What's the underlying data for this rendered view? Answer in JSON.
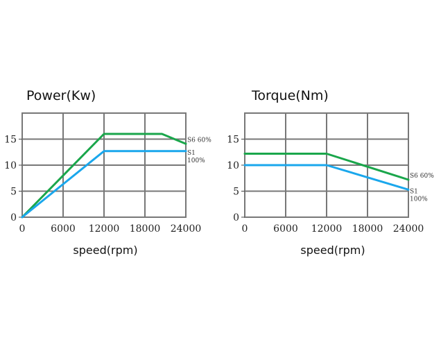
{
  "colors": {
    "s6": "#1aa64b",
    "s1": "#1aa7ec",
    "grid": "#777777",
    "axis": "#444444"
  },
  "chart_data": [
    {
      "type": "line",
      "title": "Power(Kw)",
      "xlabel": "speed(rpm)",
      "ylabel": "",
      "xlim": [
        0,
        24000
      ],
      "ylim": [
        0,
        20
      ],
      "xticks": [
        0,
        6000,
        12000,
        18000,
        24000
      ],
      "xtick_labels": [
        "0",
        "6000",
        "12000",
        "18000",
        "24000"
      ],
      "yticks": [
        0,
        5,
        10,
        15
      ],
      "ytick_labels": [
        "0",
        "5",
        "10",
        "15"
      ],
      "grid": true,
      "series": [
        {
          "name": "S6 60%",
          "label_lines": [
            "S6 60%"
          ],
          "key": "s6",
          "x": [
            0,
            12000,
            20500,
            24000
          ],
          "y": [
            0,
            16,
            16,
            14.1
          ]
        },
        {
          "name": "S1 100%",
          "label_lines": [
            "S1",
            "100%"
          ],
          "key": "s1",
          "x": [
            0,
            12000,
            24000
          ],
          "y": [
            0,
            12.7,
            12.7
          ]
        }
      ]
    },
    {
      "type": "line",
      "title": "Torque(Nm)",
      "xlabel": "speed(rpm)",
      "ylabel": "",
      "xlim": [
        0,
        24000
      ],
      "ylim": [
        0,
        20
      ],
      "xticks": [
        0,
        6000,
        12000,
        18000,
        24000
      ],
      "xtick_labels": [
        "0",
        "6000",
        "12000",
        "18000",
        "24000"
      ],
      "yticks": [
        0,
        5,
        10,
        15
      ],
      "ytick_labels": [
        "0",
        "5",
        "10",
        "15"
      ],
      "grid": true,
      "series": [
        {
          "name": "S6 60%",
          "label_lines": [
            "S6 60%"
          ],
          "key": "s6",
          "x": [
            0,
            12000,
            24000
          ],
          "y": [
            12.2,
            12.2,
            7.2
          ]
        },
        {
          "name": "S1 100%",
          "label_lines": [
            "S1",
            "100%"
          ],
          "key": "s1",
          "x": [
            0,
            12000,
            24000
          ],
          "y": [
            10,
            10,
            5.3
          ]
        }
      ]
    }
  ]
}
